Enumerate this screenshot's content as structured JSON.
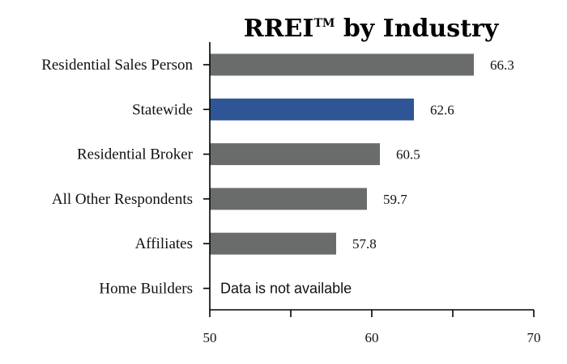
{
  "chart_data": {
    "type": "bar",
    "orientation": "horizontal",
    "title_main": "RREI",
    "title_mark": "TM",
    "title_rest": " by Industry",
    "categories": [
      "Residential Sales Person",
      "Statewide",
      "Residential Broker",
      "All Other Respondents",
      "Affiliates",
      "Home Builders"
    ],
    "values": [
      66.3,
      62.6,
      60.5,
      59.7,
      57.8,
      null
    ],
    "value_labels": [
      "66.3",
      "62.6",
      "60.5",
      "59.7",
      "57.8",
      ""
    ],
    "highlight_index": 1,
    "unavailable_text": "Data is not available",
    "xlim": [
      50,
      70
    ],
    "xticks": [
      50,
      60,
      70
    ],
    "xtick_labels": [
      "50",
      "60",
      "70"
    ],
    "xlabel": "",
    "ylabel": "",
    "grid": false,
    "colors": {
      "default_bar": "#6a6c6c",
      "highlight_bar": "#2f5597"
    }
  }
}
